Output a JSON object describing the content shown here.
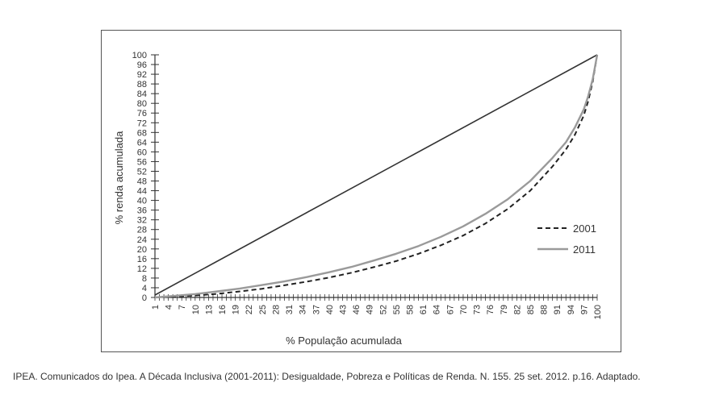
{
  "chart_data": {
    "type": "line",
    "xlabel": "% População acumulada",
    "ylabel": "% renda acumulada",
    "xlim": [
      1,
      100
    ],
    "ylim": [
      0,
      100
    ],
    "x_ticks": [
      1,
      4,
      7,
      10,
      13,
      16,
      19,
      22,
      25,
      28,
      31,
      34,
      37,
      40,
      43,
      46,
      49,
      52,
      55,
      58,
      61,
      64,
      67,
      70,
      73,
      76,
      79,
      82,
      85,
      88,
      91,
      94,
      97,
      100
    ],
    "y_ticks": [
      0,
      4,
      8,
      12,
      16,
      20,
      24,
      28,
      32,
      36,
      40,
      44,
      48,
      52,
      56,
      60,
      64,
      68,
      72,
      76,
      80,
      84,
      88,
      92,
      96,
      100
    ],
    "legend_position": "right",
    "series": [
      {
        "name": "",
        "style": "solid-dark",
        "color": "#333333",
        "x": [
          1,
          100
        ],
        "y": [
          1,
          100
        ]
      },
      {
        "name": "2001",
        "style": "dashed",
        "color": "#222222",
        "x": [
          1,
          5,
          10,
          15,
          20,
          25,
          30,
          35,
          40,
          45,
          50,
          55,
          60,
          65,
          70,
          75,
          80,
          85,
          90,
          93,
          95,
          97,
          98,
          99,
          100
        ],
        "y": [
          0,
          0.3,
          0.8,
          1.5,
          2.5,
          3.6,
          5,
          6.5,
          8.2,
          10.2,
          12.5,
          15,
          18,
          21.5,
          25.5,
          30.5,
          36.5,
          44,
          54,
          61,
          67,
          75,
          81,
          89,
          100
        ]
      },
      {
        "name": "2011",
        "style": "solid-gray",
        "color": "#9a9a9a",
        "x": [
          1,
          5,
          10,
          15,
          20,
          25,
          30,
          35,
          40,
          45,
          50,
          55,
          60,
          65,
          70,
          75,
          80,
          85,
          90,
          93,
          95,
          97,
          98,
          99,
          100
        ],
        "y": [
          0,
          0.6,
          1.4,
          2.5,
          3.7,
          5.1,
          6.6,
          8.4,
          10.4,
          12.6,
          15.2,
          18,
          21.2,
          25,
          29.3,
          34.5,
          40.5,
          48,
          57.5,
          64,
          70,
          77.5,
          83,
          90,
          100
        ]
      }
    ]
  },
  "source": {
    "caption": "IPEA. Comunicados do Ipea. A Década Inclusiva (2001-2011): Desigualdade, Pobreza e Políticas de Renda. N. 155. 25 set. 2012. p.16. Adaptado."
  }
}
